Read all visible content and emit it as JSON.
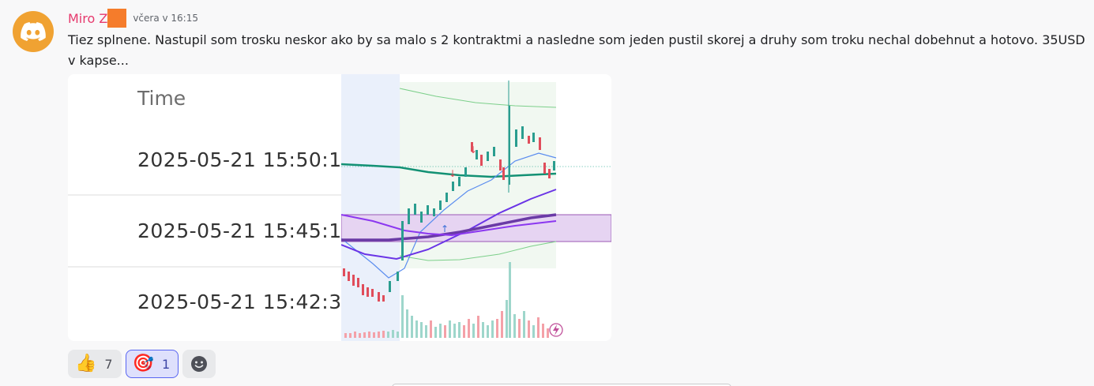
{
  "message": {
    "author": "Miro Z",
    "timestamp": "včera v 16:15",
    "text": "Tiez splnene. Nastupil som trosku neskor ako by sa malo s 2 kontraktmi a nasledne som jeden pustil skorej a druhy som troku nechal dobehnut a hotovo. 35USD v kapse..."
  },
  "attachment": {
    "table": {
      "header": "Time",
      "rows": [
        "2025-05-21 15:50:1",
        "2025-05-21 15:45:1",
        "2025-05-21 15:42:3"
      ]
    },
    "chart_icon": "lightning-icon"
  },
  "reactions": [
    {
      "emoji": "👍",
      "icon": "thumbs-up-icon",
      "count": "7",
      "active": false
    },
    {
      "emoji": "🎯",
      "icon": "target-icon",
      "count": "1",
      "active": true
    }
  ],
  "add_reaction_icon": "smiley-icon",
  "colors": {
    "avatar": "#f0a232",
    "username": "#e6396d",
    "reaction_active_border": "#5865f2"
  }
}
